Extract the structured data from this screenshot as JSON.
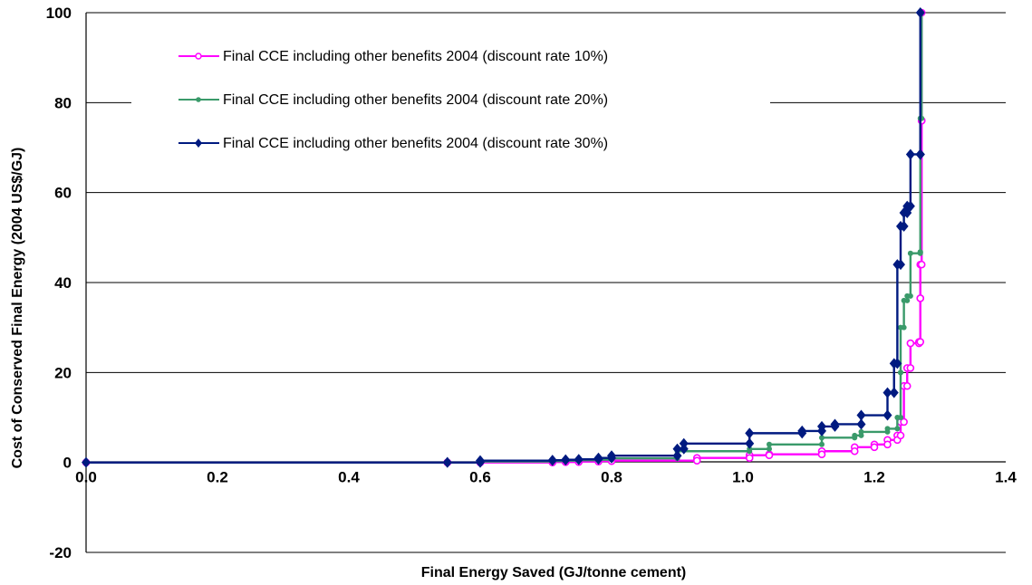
{
  "chart_data": {
    "type": "line",
    "title": "",
    "xlabel": "Final Energy Saved (GJ/tonne cement)",
    "ylabel": "Cost of Conserved Final Energy (2004 US$/GJ)",
    "xlim": [
      0,
      1.4
    ],
    "ylim": [
      -20,
      100
    ],
    "x_ticks": [
      "0.0",
      "0.2",
      "0.4",
      "0.6",
      "0.8",
      "1.0",
      "1.2",
      "1.4"
    ],
    "y_ticks": [
      "-20",
      "0",
      "20",
      "40",
      "60",
      "80",
      "100"
    ],
    "grid": "horizontal",
    "legend_position": "top-left",
    "series": [
      {
        "name": "Final CCE including other benefits 2004 (discount rate 10%)",
        "color": "#ff00ff",
        "marker": "open-circle",
        "points": [
          [
            0.0,
            0.0
          ],
          [
            0.55,
            0.0
          ],
          [
            0.6,
            0.0
          ],
          [
            0.71,
            0.1
          ],
          [
            0.73,
            0.1
          ],
          [
            0.75,
            0.2
          ],
          [
            0.78,
            0.3
          ],
          [
            0.8,
            0.4
          ],
          [
            0.93,
            1.0
          ],
          [
            1.01,
            1.6
          ],
          [
            1.04,
            1.8
          ],
          [
            1.12,
            2.5
          ],
          [
            1.17,
            3.4
          ],
          [
            1.2,
            4.0
          ],
          [
            1.22,
            5.0
          ],
          [
            1.235,
            6.0
          ],
          [
            1.24,
            9.0
          ],
          [
            1.245,
            17.0
          ],
          [
            1.25,
            21.0
          ],
          [
            1.255,
            26.5
          ],
          [
            1.268,
            26.8
          ],
          [
            1.27,
            36.5
          ],
          [
            1.27,
            44.0
          ],
          [
            1.272,
            76.0
          ],
          [
            1.272,
            100.0
          ]
        ]
      },
      {
        "name": "Final CCE including other benefits 2004 (discount rate 20%)",
        "color": "#3a9a6a",
        "marker": "dot",
        "points": [
          [
            0.0,
            0.0
          ],
          [
            0.55,
            0.0
          ],
          [
            0.6,
            0.2
          ],
          [
            0.71,
            0.3
          ],
          [
            0.73,
            0.4
          ],
          [
            0.75,
            0.5
          ],
          [
            0.78,
            0.6
          ],
          [
            0.8,
            0.9
          ],
          [
            0.9,
            2.5
          ],
          [
            1.01,
            3.0
          ],
          [
            1.04,
            4.0
          ],
          [
            1.12,
            5.5
          ],
          [
            1.17,
            6.0
          ],
          [
            1.18,
            6.8
          ],
          [
            1.22,
            7.5
          ],
          [
            1.235,
            10.0
          ],
          [
            1.24,
            20.0
          ],
          [
            1.24,
            30.0
          ],
          [
            1.245,
            36.0
          ],
          [
            1.25,
            37.0
          ],
          [
            1.255,
            46.5
          ],
          [
            1.27,
            46.8
          ],
          [
            1.27,
            76.5
          ],
          [
            1.272,
            100.0
          ]
        ]
      },
      {
        "name": "Final CCE including other benefits 2004 (discount rate 30%)",
        "color": "#001a80",
        "marker": "diamond",
        "points": [
          [
            0.0,
            0.0
          ],
          [
            0.55,
            0.0
          ],
          [
            0.6,
            0.4
          ],
          [
            0.71,
            0.5
          ],
          [
            0.73,
            0.6
          ],
          [
            0.75,
            0.7
          ],
          [
            0.78,
            1.0
          ],
          [
            0.8,
            1.5
          ],
          [
            0.9,
            3.0
          ],
          [
            0.91,
            4.2
          ],
          [
            1.01,
            6.5
          ],
          [
            1.09,
            7.0
          ],
          [
            1.12,
            8.0
          ],
          [
            1.14,
            8.5
          ],
          [
            1.18,
            10.5
          ],
          [
            1.22,
            15.5
          ],
          [
            1.23,
            22.0
          ],
          [
            1.235,
            44.0
          ],
          [
            1.24,
            52.5
          ],
          [
            1.245,
            55.5
          ],
          [
            1.25,
            57.0
          ],
          [
            1.255,
            68.5
          ],
          [
            1.27,
            68.5
          ],
          [
            1.27,
            100.0
          ]
        ]
      }
    ]
  }
}
